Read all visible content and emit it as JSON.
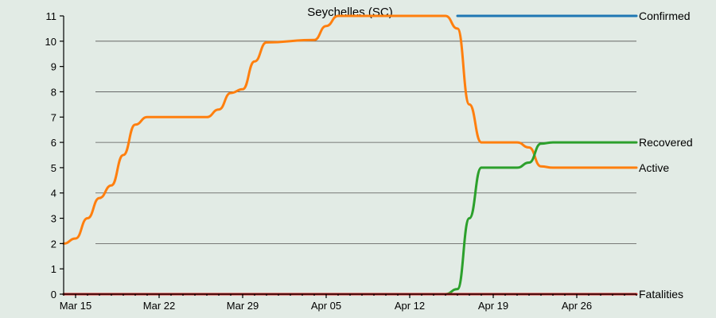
{
  "chart_data": {
    "type": "line",
    "title": "Seychelles (SC)",
    "xlabel": "",
    "ylabel": "",
    "x_start": "2020-03-14",
    "x_end": "2020-05-01",
    "ylim": [
      0,
      11
    ],
    "yticks": [
      0,
      1,
      2,
      3,
      4,
      5,
      6,
      7,
      8,
      9,
      10,
      11
    ],
    "xticks": [
      {
        "date": "2020-03-15",
        "label": "Mar 15"
      },
      {
        "date": "2020-03-22",
        "label": "Mar 22"
      },
      {
        "date": "2020-03-29",
        "label": "Mar 29"
      },
      {
        "date": "2020-04-05",
        "label": "Apr 05"
      },
      {
        "date": "2020-04-12",
        "label": "Apr 12"
      },
      {
        "date": "2020-04-19",
        "label": "Apr 19"
      },
      {
        "date": "2020-04-26",
        "label": "Apr 26"
      }
    ],
    "grid": "horizontal",
    "legend": "inline-right",
    "series": [
      {
        "name": "Confirmed",
        "color": "#1f77b4",
        "points": [
          [
            "2020-04-16",
            11
          ],
          [
            "2020-05-01",
            11
          ]
        ]
      },
      {
        "name": "Active",
        "color": "#ff7f0e",
        "points": [
          [
            "2020-03-14",
            2
          ],
          [
            "2020-03-15",
            2.2
          ],
          [
            "2020-03-16",
            3
          ],
          [
            "2020-03-17",
            3.8
          ],
          [
            "2020-03-18",
            4.3
          ],
          [
            "2020-03-19",
            5.5
          ],
          [
            "2020-03-20",
            6.7
          ],
          [
            "2020-03-21",
            7
          ],
          [
            "2020-03-26",
            7
          ],
          [
            "2020-03-27",
            7.3
          ],
          [
            "2020-03-28",
            7.95
          ],
          [
            "2020-03-29",
            8.1
          ],
          [
            "2020-03-30",
            9.2
          ],
          [
            "2020-03-31",
            9.95
          ],
          [
            "2020-04-04",
            10.05
          ],
          [
            "2020-04-05",
            10.6
          ],
          [
            "2020-04-06",
            11
          ],
          [
            "2020-04-15",
            11
          ],
          [
            "2020-04-16",
            10.5
          ],
          [
            "2020-04-17",
            7.5
          ],
          [
            "2020-04-18",
            6
          ],
          [
            "2020-04-21",
            6
          ],
          [
            "2020-04-22",
            5.8
          ],
          [
            "2020-04-23",
            5.05
          ],
          [
            "2020-04-24",
            5
          ],
          [
            "2020-05-01",
            5
          ]
        ]
      },
      {
        "name": "Recovered",
        "color": "#2ca02c",
        "points": [
          [
            "2020-03-14",
            0
          ],
          [
            "2020-04-15",
            0
          ],
          [
            "2020-04-16",
            0.2
          ],
          [
            "2020-04-17",
            3
          ],
          [
            "2020-04-18",
            5
          ],
          [
            "2020-04-21",
            5
          ],
          [
            "2020-04-22",
            5.2
          ],
          [
            "2020-04-23",
            5.95
          ],
          [
            "2020-04-24",
            6
          ],
          [
            "2020-05-01",
            6
          ]
        ]
      },
      {
        "name": "Fatalities",
        "color": "#d62728",
        "points": [
          [
            "2020-03-14",
            0
          ],
          [
            "2020-05-01",
            0
          ]
        ]
      }
    ]
  }
}
